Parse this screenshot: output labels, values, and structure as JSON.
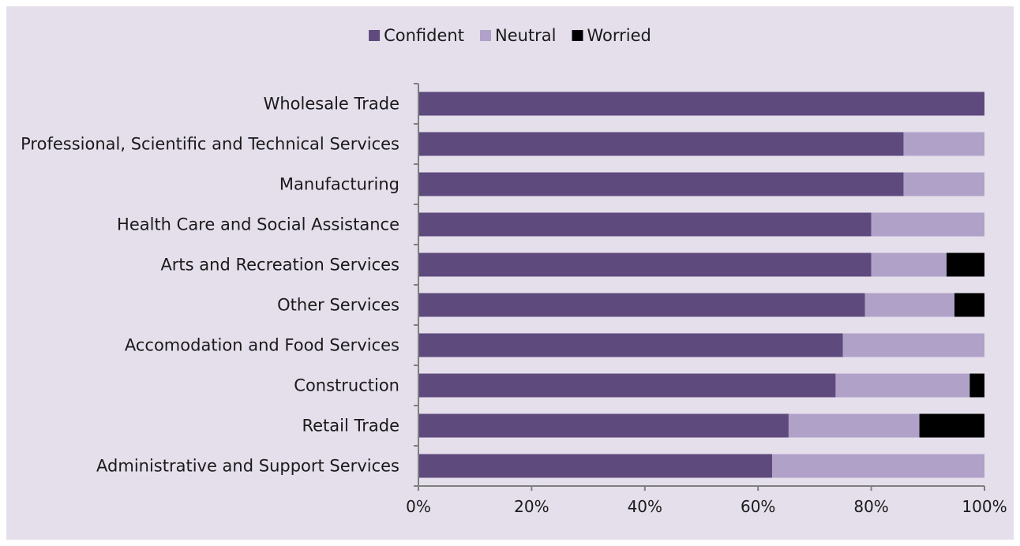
{
  "chart_data": {
    "type": "bar",
    "orientation": "horizontal",
    "stacked": true,
    "title": "",
    "xlabel": "",
    "ylabel": "",
    "xlim": [
      0,
      100
    ],
    "x_tick_labels": [
      "0%",
      "20%",
      "40%",
      "60%",
      "80%",
      "100%"
    ],
    "x_tick_values": [
      0,
      20,
      40,
      60,
      80,
      100
    ],
    "grid": false,
    "legend_position": "top-center",
    "categories": [
      "Wholesale Trade",
      "Professional, Scientific and Technical Services",
      "Manufacturing",
      "Health Care and Social Assistance",
      "Arts and Recreation Services",
      "Other Services",
      "Accomodation and Food Services",
      "Construction",
      "Retail Trade",
      "Administrative and Support Services"
    ],
    "series": [
      {
        "name": "Confident",
        "color": "#5e4a7c",
        "values": [
          100,
          85.7,
          85.7,
          80,
          80,
          78.9,
          75,
          73.7,
          65.4,
          62.5
        ]
      },
      {
        "name": "Neutral",
        "color": "#b0a1c8",
        "values": [
          0,
          14.3,
          14.3,
          20,
          13.3,
          15.8,
          25,
          23.7,
          23.1,
          37.5
        ]
      },
      {
        "name": "Worried",
        "color": "#000000",
        "values": [
          0,
          0,
          0,
          0,
          6.7,
          5.3,
          0,
          2.6,
          11.5,
          0
        ]
      }
    ]
  },
  "colors": {
    "panel_background": "#e5dfec",
    "axis": "#7f7f7f",
    "text": "#1a1a1a"
  }
}
